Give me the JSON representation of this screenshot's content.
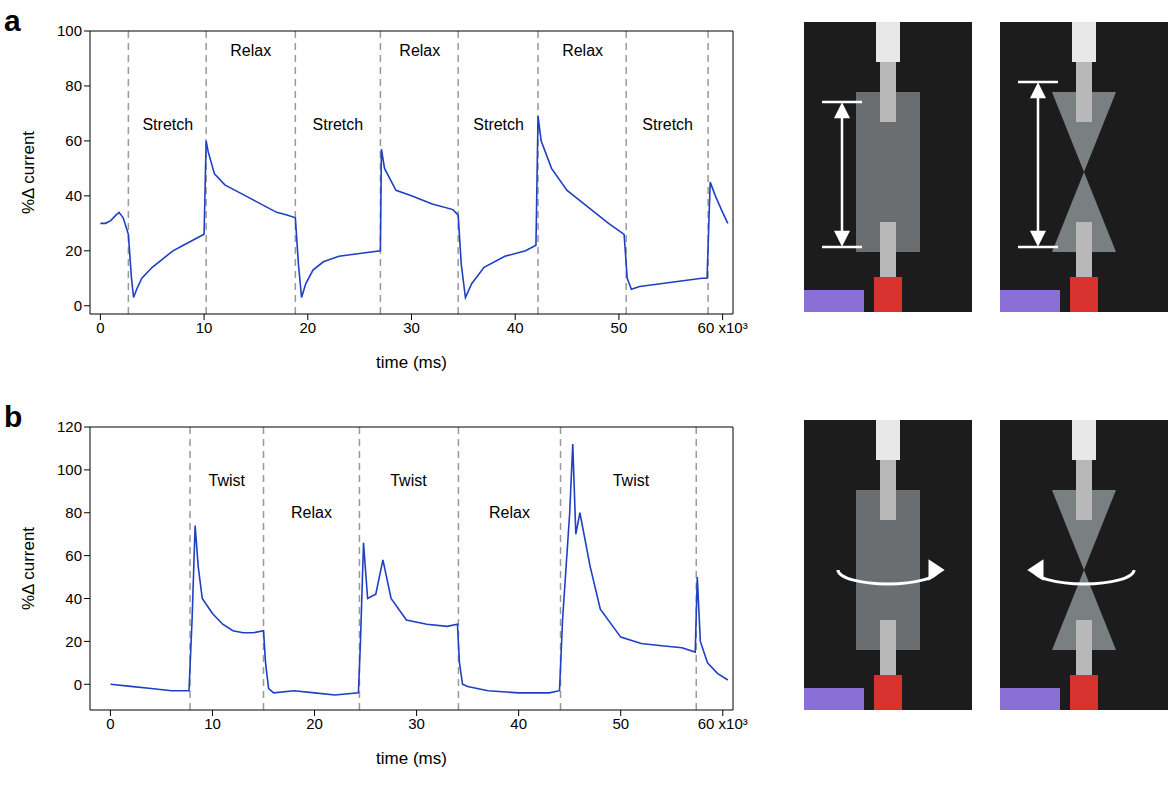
{
  "chart_data": [
    {
      "type": "line",
      "panel": "a",
      "xlabel": "time (ms)",
      "ylabel": "%Δ current",
      "color": "#1f3fc4",
      "xlim": [
        -1,
        61
      ],
      "ylim": [
        -3,
        100
      ],
      "xticks": [
        0,
        10,
        20,
        30,
        40,
        50,
        {
          "value": 60,
          "label": "60 x10³"
        }
      ],
      "yticks": [
        0,
        20,
        40,
        60,
        80,
        100
      ],
      "dividers": [
        2.7,
        10.2,
        18.8,
        27.0,
        34.5,
        42.2,
        50.7,
        58.6
      ],
      "annotations": [
        {
          "text": "Stretch",
          "x": 6.5,
          "y": 66
        },
        {
          "text": "Relax",
          "x": 14.5,
          "y": 93
        },
        {
          "text": "Stretch",
          "x": 22.9,
          "y": 66
        },
        {
          "text": "Relax",
          "x": 30.8,
          "y": 93
        },
        {
          "text": "Stretch",
          "x": 38.4,
          "y": 66
        },
        {
          "text": "Relax",
          "x": 46.5,
          "y": 93
        },
        {
          "text": "Stretch",
          "x": 54.7,
          "y": 66
        }
      ],
      "x": [
        0,
        0.5,
        1,
        1.5,
        1.8,
        2.2,
        2.7,
        3.0,
        3.2,
        3.5,
        4,
        5,
        6,
        7,
        8,
        9,
        10,
        10.2,
        10.4,
        11,
        12,
        13,
        14,
        15,
        16,
        17,
        18,
        18.8,
        19.1,
        19.4,
        19.8,
        20.5,
        21.5,
        23,
        25,
        27,
        27.1,
        27.4,
        28.5,
        30,
        32,
        34,
        34.5,
        34.8,
        35.2,
        35.8,
        37,
        39,
        41,
        42,
        42.2,
        42.5,
        43.5,
        45,
        47,
        49,
        50.5,
        50.8,
        51.2,
        52,
        54,
        56,
        58,
        58.5,
        58.8,
        59.3,
        60,
        60.5
      ],
      "values": [
        30,
        30,
        31,
        33,
        34,
        32,
        26,
        10,
        3,
        6,
        10,
        14,
        17,
        20,
        22,
        24,
        26,
        60,
        56,
        48,
        44,
        42,
        40,
        38,
        36,
        34,
        33,
        32,
        15,
        3,
        8,
        13,
        16,
        18,
        19,
        20,
        57,
        50,
        42,
        40,
        37,
        35,
        33,
        15,
        3,
        8,
        14,
        18,
        20,
        22,
        69,
        60,
        50,
        42,
        36,
        30,
        26,
        10,
        6,
        7,
        8,
        9,
        10,
        10,
        45,
        40,
        34,
        30
      ]
    },
    {
      "type": "line",
      "panel": "b",
      "xlabel": "time (ms)",
      "ylabel": "%Δ current",
      "color": "#1f3fc4",
      "xlim": [
        -2,
        61
      ],
      "ylim": [
        -12,
        120
      ],
      "xticks": [
        0,
        10,
        20,
        30,
        40,
        50,
        {
          "value": 60,
          "label": "60 x10³"
        }
      ],
      "yticks": [
        0,
        20,
        40,
        60,
        80,
        100,
        120
      ],
      "dividers": [
        7.8,
        15.0,
        24.4,
        34.1,
        44.1,
        57.4
      ],
      "annotations": [
        {
          "text": "Twist",
          "x": 11.4,
          "y": 95
        },
        {
          "text": "Relax",
          "x": 19.7,
          "y": 80
        },
        {
          "text": "Twist",
          "x": 29.2,
          "y": 95
        },
        {
          "text": "Relax",
          "x": 39.1,
          "y": 80
        },
        {
          "text": "Twist",
          "x": 51.0,
          "y": 95
        }
      ],
      "x": [
        0,
        2,
        4,
        6,
        7.7,
        8.0,
        8.3,
        8.6,
        9,
        10,
        11,
        12,
        13,
        14,
        15,
        15.2,
        15.5,
        16,
        18,
        20,
        22,
        24.3,
        24.5,
        24.8,
        25.2,
        26,
        26.7,
        27.5,
        29,
        31,
        33,
        34,
        34.2,
        34.5,
        35,
        37,
        40,
        43,
        44,
        44.3,
        45,
        45.3,
        45.6,
        46,
        47,
        48,
        50,
        52,
        54,
        56,
        57.3,
        57.5,
        57.8,
        58.5,
        59.5,
        60.5
      ],
      "values": [
        0,
        -1,
        -2,
        -3,
        -3,
        30,
        74,
        55,
        40,
        33,
        28,
        25,
        24,
        24,
        25,
        10,
        -2,
        -4,
        -3,
        -4,
        -5,
        -4,
        20,
        66,
        40,
        42,
        58,
        40,
        30,
        28,
        27,
        28,
        10,
        0,
        -1,
        -3,
        -4,
        -4,
        -3,
        30,
        80,
        112,
        70,
        80,
        55,
        35,
        22,
        19,
        18,
        17,
        15,
        50,
        20,
        10,
        5,
        2
      ]
    }
  ]
}
